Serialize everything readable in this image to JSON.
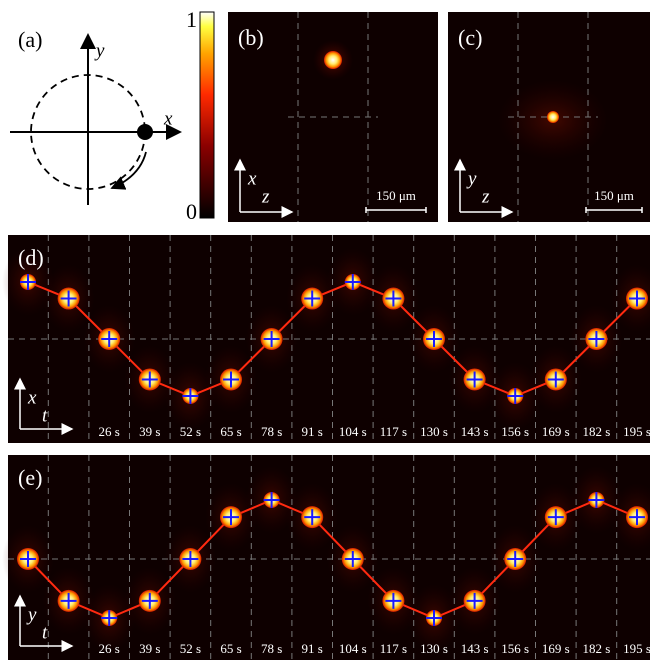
{
  "panels": {
    "a": {
      "label": "(a)",
      "x_axis": "x",
      "y_axis": "y"
    },
    "colorbar": {
      "ticks": [
        0,
        1
      ]
    },
    "b": {
      "label": "(b)",
      "vertical_axis": "x",
      "horizontal_axis": "z",
      "scale_bar": "150 μm"
    },
    "c": {
      "label": "(c)",
      "vertical_axis": "y",
      "horizontal_axis": "z",
      "scale_bar": "150 μm"
    },
    "d": {
      "label": "(d)",
      "vertical_axis": "x",
      "horizontal_axis": "t",
      "time_labels": [
        "26 s",
        "39 s",
        "52 s",
        "65 s",
        "78 s",
        "91 s",
        "104 s",
        "117 s",
        "130 s",
        "143 s",
        "156 s",
        "169 s",
        "182 s",
        "195 s"
      ],
      "positions": [
        1,
        0.71,
        0,
        -0.71,
        -1,
        -0.71,
        0,
        0.71,
        1,
        0.71,
        0,
        -0.71,
        -1,
        -0.71,
        0,
        0.71
      ]
    },
    "e": {
      "label": "(e)",
      "vertical_axis": "y",
      "horizontal_axis": "t",
      "time_labels": [
        "26 s",
        "39 s",
        "52 s",
        "65 s",
        "78 s",
        "91 s",
        "104 s",
        "117 s",
        "130 s",
        "143 s",
        "156 s",
        "169 s",
        "182 s",
        "195 s"
      ],
      "positions": [
        0,
        -0.71,
        -1,
        -0.71,
        0,
        0.71,
        1,
        0.71,
        0,
        -0.71,
        -1,
        -0.71,
        0,
        0.71,
        1,
        0.71
      ]
    }
  }
}
